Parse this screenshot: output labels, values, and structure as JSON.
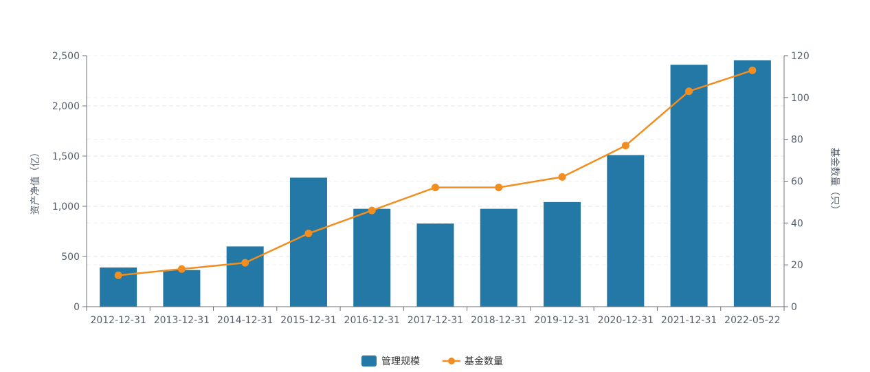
{
  "chart_data": {
    "type": "bar",
    "categories": [
      "2012-12-31",
      "2013-12-31",
      "2014-12-31",
      "2015-12-31",
      "2016-12-31",
      "2017-12-31",
      "2018-12-31",
      "2019-12-31",
      "2020-12-31",
      "2021-12-31",
      "2022-05-22"
    ],
    "series": [
      {
        "name": "管理规模",
        "type": "bar",
        "axis": "left",
        "values": [
          390,
          365,
          600,
          1285,
          975,
          828,
          975,
          1042,
          1510,
          2410,
          2455
        ]
      },
      {
        "name": "基金数量",
        "type": "line",
        "axis": "right",
        "values": [
          15,
          18,
          21,
          35,
          46,
          57,
          57,
          62,
          77,
          103,
          113
        ]
      }
    ],
    "ylabel": "资产净值（亿）",
    "y2label": "基金数量（只）",
    "ylim": [
      0,
      2500
    ],
    "y2lim": [
      0,
      120
    ],
    "yticks": [
      "0",
      "500",
      "1,000",
      "1,500",
      "2,000",
      "2,500"
    ],
    "y2ticks": [
      "0",
      "20",
      "40",
      "60",
      "80",
      "100",
      "120"
    ],
    "grid": true,
    "legend_position": "bottom-center",
    "colors": {
      "bar": "#2378a5",
      "line": "#f28e1f"
    }
  }
}
